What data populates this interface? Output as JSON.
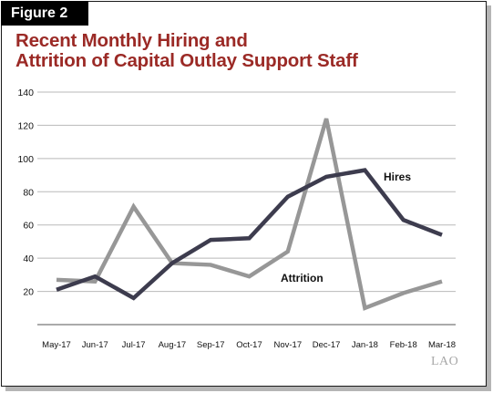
{
  "figure_label": "Figure 2",
  "title_line1": "Recent Monthly Hiring and",
  "title_line2": "Attrition of Capital Outlay Support Staff",
  "logo_text": "LAO",
  "chart_data": {
    "type": "line",
    "title": "Recent Monthly Hiring and Attrition of Capital Outlay Support Staff",
    "categories": [
      "May-17",
      "Jun-17",
      "Jul-17",
      "Aug-17",
      "Sep-17",
      "Oct-17",
      "Nov-17",
      "Dec-17",
      "Jan-18",
      "Feb-18",
      "Mar-18"
    ],
    "ylim": [
      0,
      140
    ],
    "yticks": [
      20,
      40,
      60,
      80,
      100,
      120,
      140
    ],
    "grid": true,
    "series": [
      {
        "name": "Hires",
        "color": "#3d3c4e",
        "values": [
          21,
          29,
          16,
          37,
          51,
          52,
          77,
          89,
          93,
          63,
          54
        ]
      },
      {
        "name": "Attrition",
        "color": "#979797",
        "values": [
          27,
          26,
          71,
          37,
          36,
          29,
          44,
          124,
          10,
          19,
          26
        ]
      }
    ]
  }
}
